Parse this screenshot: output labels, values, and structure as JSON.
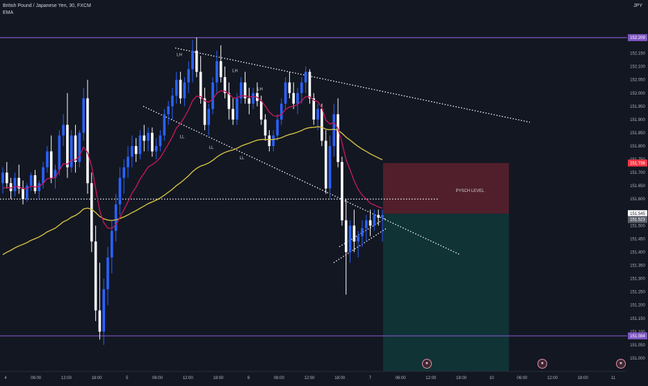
{
  "header": {
    "symbol_line": "British Pound / Japanese Yen, 30, FXCM",
    "indicator": "EMA",
    "currency": "JPY"
  },
  "colors": {
    "background": "#131722",
    "up_candle": "#2962ff",
    "down_candle": "#ffffff",
    "ema_fast": "#c2185b",
    "ema_slow": "#d4c144",
    "horizontal_level": "#7e57c2",
    "trendline": "#ffffff",
    "stop_zone": "rgba(242,54,69,0.28)",
    "target_zone": "rgba(8,153,129,0.22)"
  },
  "chart_data": {
    "type": "candlestick",
    "y_axis": {
      "min": 150.95,
      "max": 152.33,
      "ticks": [
        152.15,
        152.1,
        152.05,
        152.0,
        151.95,
        151.9,
        151.85,
        151.8,
        151.75,
        151.7,
        151.65,
        151.6,
        151.55,
        151.5,
        151.45,
        151.4,
        151.35,
        151.3,
        151.25,
        151.2,
        151.15,
        151.1,
        151.05,
        151.0
      ]
    },
    "price_labels": [
      {
        "value": 152.209,
        "text": "152.209",
        "color": "#7e57c2"
      },
      {
        "value": 151.736,
        "text": "151.736",
        "color": "#f23645"
      },
      {
        "value": 151.545,
        "text": "151.545",
        "color": "#ffffff"
      },
      {
        "value": 151.523,
        "text": "151.523",
        "color": "#5d606b"
      },
      {
        "value": 151.084,
        "text": "151.084",
        "color": "#7e57c2"
      }
    ],
    "x_labels": [
      "4",
      "06:00",
      "12:00",
      "18:00",
      "5",
      "06:00",
      "12:00",
      "18:00",
      "6",
      "06:00",
      "12:00",
      "18:00",
      "7",
      "06:00",
      "12:00",
      "18:00",
      "10",
      "06:00",
      "12:00",
      "18:00",
      "11"
    ],
    "horizontal_levels": [
      152.209,
      151.084
    ],
    "psych_level": {
      "value": 151.6,
      "label": "PYSCH LEVEL"
    },
    "position": {
      "entry": 151.545,
      "stop": 151.736,
      "target": 150.95
    },
    "annotations": [
      {
        "text": "LH",
        "type": "swing"
      },
      {
        "text": "LH",
        "type": "swing"
      },
      {
        "text": "LH",
        "type": "swing"
      },
      {
        "text": "LL",
        "type": "swing"
      },
      {
        "text": "LL",
        "type": "swing"
      },
      {
        "text": "LL",
        "type": "swing"
      }
    ],
    "candles": [
      [
        151.66,
        151.72,
        151.62,
        151.7
      ],
      [
        151.7,
        151.74,
        151.64,
        151.66
      ],
      [
        151.66,
        151.68,
        151.6,
        151.63
      ],
      [
        151.63,
        151.7,
        151.61,
        151.68
      ],
      [
        151.68,
        151.73,
        151.62,
        151.64
      ],
      [
        151.64,
        151.67,
        151.58,
        151.6
      ],
      [
        151.6,
        151.66,
        151.59,
        151.65
      ],
      [
        151.65,
        151.7,
        151.63,
        151.69
      ],
      [
        151.69,
        151.71,
        151.62,
        151.63
      ],
      [
        151.63,
        151.67,
        151.6,
        151.66
      ],
      [
        151.66,
        151.74,
        151.64,
        151.72
      ],
      [
        151.72,
        151.8,
        151.7,
        151.78
      ],
      [
        151.78,
        151.84,
        151.66,
        151.68
      ],
      [
        151.68,
        151.73,
        151.64,
        151.71
      ],
      [
        151.71,
        151.86,
        151.69,
        151.84
      ],
      [
        151.84,
        151.92,
        151.8,
        151.88
      ],
      [
        151.88,
        152.0,
        151.68,
        151.72
      ],
      [
        151.72,
        151.86,
        151.7,
        151.84
      ],
      [
        151.84,
        151.88,
        151.7,
        151.74
      ],
      [
        151.74,
        151.86,
        151.72,
        151.85
      ],
      [
        151.85,
        152.02,
        151.82,
        151.98
      ],
      [
        151.98,
        152.05,
        151.62,
        151.66
      ],
      [
        151.66,
        151.7,
        151.4,
        151.44
      ],
      [
        151.44,
        151.5,
        151.14,
        151.18
      ],
      [
        151.18,
        151.36,
        151.07,
        151.1
      ],
      [
        151.1,
        151.3,
        151.05,
        151.26
      ],
      [
        151.26,
        151.42,
        151.2,
        151.38
      ],
      [
        151.38,
        151.52,
        151.32,
        151.48
      ],
      [
        151.48,
        151.62,
        151.44,
        151.58
      ],
      [
        151.58,
        151.72,
        151.54,
        151.68
      ],
      [
        151.68,
        151.75,
        151.62,
        151.72
      ],
      [
        151.72,
        151.8,
        151.68,
        151.76
      ],
      [
        151.76,
        151.84,
        151.72,
        151.8
      ],
      [
        151.8,
        151.83,
        151.74,
        151.77
      ],
      [
        151.77,
        151.86,
        151.75,
        151.84
      ],
      [
        151.84,
        151.88,
        151.78,
        151.82
      ],
      [
        151.82,
        151.87,
        151.78,
        151.85
      ],
      [
        151.85,
        151.87,
        151.76,
        151.78
      ],
      [
        151.78,
        151.83,
        151.75,
        151.8
      ],
      [
        151.8,
        151.86,
        151.78,
        151.84
      ],
      [
        151.84,
        151.94,
        151.82,
        151.92
      ],
      [
        151.92,
        151.97,
        151.88,
        151.95
      ],
      [
        151.95,
        152.02,
        151.9,
        151.99
      ],
      [
        151.99,
        152.08,
        151.96,
        152.05
      ],
      [
        152.05,
        152.08,
        151.96,
        151.98
      ],
      [
        151.98,
        152.06,
        151.95,
        152.04
      ],
      [
        152.04,
        152.12,
        152.0,
        152.09
      ],
      [
        152.09,
        152.2,
        152.04,
        152.16
      ],
      [
        152.16,
        152.21,
        152.06,
        152.08
      ],
      [
        152.08,
        152.14,
        151.96,
        151.98
      ],
      [
        151.98,
        152.02,
        151.86,
        151.88
      ],
      [
        151.88,
        151.96,
        151.84,
        151.94
      ],
      [
        151.94,
        152.06,
        151.92,
        152.04
      ],
      [
        152.04,
        152.16,
        152.0,
        152.12
      ],
      [
        152.12,
        152.18,
        152.04,
        152.06
      ],
      [
        152.06,
        152.1,
        151.98,
        152.0
      ],
      [
        152.0,
        152.04,
        151.9,
        151.94
      ],
      [
        151.94,
        151.98,
        151.88,
        151.9
      ],
      [
        151.9,
        152.0,
        151.88,
        151.98
      ],
      [
        151.98,
        152.06,
        151.96,
        152.04
      ],
      [
        152.04,
        152.08,
        151.96,
        151.98
      ],
      [
        151.98,
        152.02,
        151.92,
        151.96
      ],
      [
        151.96,
        152.02,
        151.94,
        152.0
      ],
      [
        152.0,
        152.04,
        151.95,
        151.97
      ],
      [
        151.97,
        151.99,
        151.88,
        151.9
      ],
      [
        151.9,
        151.92,
        151.82,
        151.84
      ],
      [
        151.84,
        151.86,
        151.78,
        151.8
      ],
      [
        151.8,
        151.86,
        151.78,
        151.84
      ],
      [
        151.84,
        151.92,
        151.82,
        151.9
      ],
      [
        151.9,
        151.98,
        151.88,
        151.96
      ],
      [
        151.96,
        152.06,
        151.94,
        152.04
      ],
      [
        152.04,
        152.08,
        151.98,
        152.0
      ],
      [
        152.0,
        152.04,
        151.94,
        151.96
      ],
      [
        151.96,
        152.02,
        151.92,
        152.0
      ],
      [
        152.0,
        152.06,
        151.96,
        152.04
      ],
      [
        152.04,
        152.1,
        152.0,
        152.08
      ],
      [
        152.08,
        152.09,
        151.96,
        151.98
      ],
      [
        151.98,
        152.0,
        151.88,
        151.9
      ],
      [
        151.9,
        151.96,
        151.86,
        151.94
      ],
      [
        151.94,
        151.96,
        151.8,
        151.82
      ],
      [
        151.82,
        151.86,
        151.62,
        151.64
      ],
      [
        151.64,
        151.84,
        151.6,
        151.8
      ],
      [
        151.8,
        151.96,
        151.76,
        151.92
      ],
      [
        151.92,
        151.98,
        151.72,
        151.74
      ],
      [
        151.74,
        151.76,
        151.5,
        151.52
      ],
      [
        151.52,
        151.6,
        151.24,
        151.4
      ],
      [
        151.4,
        151.52,
        151.36,
        151.5
      ],
      [
        151.5,
        151.56,
        151.4,
        151.44
      ],
      [
        151.44,
        151.48,
        151.38,
        151.46
      ],
      [
        151.46,
        151.52,
        151.42,
        151.49
      ],
      [
        151.49,
        151.54,
        151.44,
        151.52
      ],
      [
        151.52,
        151.56,
        151.46,
        151.5
      ],
      [
        151.5,
        151.56,
        151.48,
        151.54
      ],
      [
        151.54,
        151.56,
        151.5,
        151.53
      ],
      [
        151.53,
        151.56,
        151.44,
        151.54
      ]
    ]
  }
}
